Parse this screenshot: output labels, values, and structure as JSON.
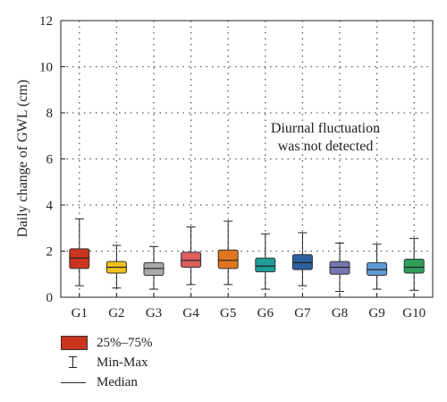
{
  "chart_data": {
    "type": "box",
    "ylabel": "Daily change of GWL (cm)",
    "ylim": [
      0,
      12
    ],
    "yticks": [
      0,
      2,
      4,
      6,
      8,
      10,
      12
    ],
    "grid": true,
    "categories": [
      "G1",
      "G2",
      "G3",
      "G4",
      "G5",
      "G6",
      "G7",
      "G8",
      "G9",
      "G10"
    ],
    "boxes": [
      {
        "name": "G1",
        "min": 0.5,
        "q1": 1.25,
        "median": 1.7,
        "q3": 2.1,
        "max": 3.4,
        "color": "#c9351f"
      },
      {
        "name": "G2",
        "min": 0.4,
        "q1": 1.05,
        "median": 1.3,
        "q3": 1.55,
        "max": 2.25,
        "color": "#f0c21b"
      },
      {
        "name": "G3",
        "min": 0.35,
        "q1": 0.95,
        "median": 1.25,
        "q3": 1.5,
        "max": 2.2,
        "color": "#a9a9a9"
      },
      {
        "name": "G4",
        "min": 0.55,
        "q1": 1.3,
        "median": 1.6,
        "q3": 1.95,
        "max": 3.05,
        "color": "#d95f5d"
      },
      {
        "name": "G5",
        "min": 0.55,
        "q1": 1.25,
        "median": 1.6,
        "q3": 2.05,
        "max": 3.3,
        "color": "#e0751f"
      },
      {
        "name": "G6",
        "min": 0.35,
        "q1": 1.1,
        "median": 1.35,
        "q3": 1.7,
        "max": 2.75,
        "color": "#1f9e98"
      },
      {
        "name": "G7",
        "min": 0.5,
        "q1": 1.2,
        "median": 1.5,
        "q3": 1.85,
        "max": 2.8,
        "color": "#2e5f9e"
      },
      {
        "name": "G8",
        "min": 0.25,
        "q1": 1.0,
        "median": 1.3,
        "q3": 1.55,
        "max": 2.35,
        "color": "#7777b4"
      },
      {
        "name": "G9",
        "min": 0.35,
        "q1": 0.95,
        "median": 1.2,
        "q3": 1.5,
        "max": 2.3,
        "color": "#5d9bd5"
      },
      {
        "name": "G10",
        "min": 0.3,
        "q1": 1.05,
        "median": 1.3,
        "q3": 1.65,
        "max": 2.55,
        "color": "#2e9e59"
      }
    ],
    "annotation": [
      "Diurnal fluctuation",
      "was not detected"
    ]
  },
  "legend": {
    "box_label": "25%–75%",
    "box_color": "#c9351f",
    "minmax_label": "Min-Max",
    "median_label": "Median"
  }
}
